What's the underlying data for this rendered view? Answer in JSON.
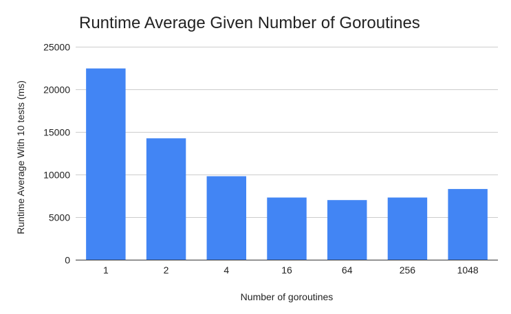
{
  "chart_data": {
    "type": "bar",
    "title": "Runtime Average Given Number of Goroutines",
    "xlabel": "Number of goroutines",
    "ylabel": "Runtime Average With 10 tests (ms)",
    "categories": [
      "1",
      "2",
      "4",
      "16",
      "64",
      "256",
      "1048"
    ],
    "values": [
      22450,
      14250,
      9800,
      7300,
      7000,
      7300,
      8300
    ],
    "ylim": [
      0,
      25000
    ],
    "yticks": [
      0,
      5000,
      10000,
      15000,
      20000,
      25000
    ],
    "grid": true,
    "legend": "none",
    "bar_color": "#4285f4",
    "grid_color": "#cccccc",
    "axis_color": "#333333",
    "text_color": "#222222"
  }
}
